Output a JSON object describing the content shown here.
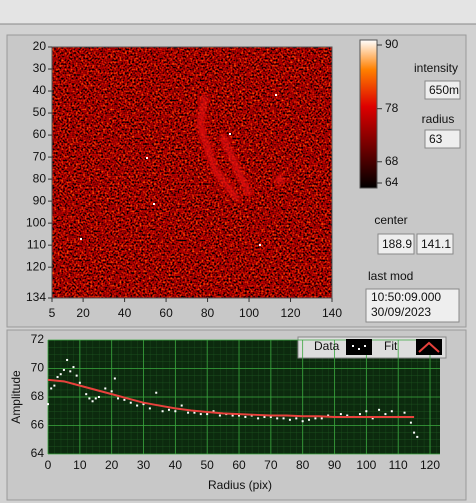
{
  "image_graph": {
    "xlim": [
      5,
      140
    ],
    "xticks": [
      5,
      20,
      40,
      60,
      80,
      100,
      120,
      140
    ],
    "ylim": [
      20,
      134
    ],
    "yticks": [
      20,
      30,
      40,
      50,
      60,
      70,
      80,
      90,
      100,
      110,
      120,
      134
    ]
  },
  "colorbar": {
    "lim": [
      64,
      90
    ],
    "ticks": [
      90,
      78,
      68,
      64
    ]
  },
  "indicators": {
    "intensity": {
      "label": "intensity",
      "value": "650m"
    },
    "radius": {
      "label": "radius",
      "value": "63"
    },
    "center": {
      "label": "center",
      "values": [
        "188.9",
        "141.1"
      ]
    },
    "last_mod": {
      "label": "last mod",
      "lines": [
        "10:50:09.000",
        "30/09/2023"
      ]
    }
  },
  "fit_plot": {
    "type": "scatter",
    "x_label": "Radius (pix)",
    "y_label": "Amplitude",
    "xlim": [
      0,
      120
    ],
    "xticks": [
      0,
      10,
      20,
      30,
      40,
      50,
      60,
      70,
      80,
      90,
      100,
      110,
      120
    ],
    "ylim": [
      64,
      72
    ],
    "yticks": [
      64,
      66,
      68,
      70,
      72
    ],
    "grid": true,
    "series": [
      {
        "name": "Data",
        "color": "#ffffff",
        "mode": "markers",
        "x": [
          0,
          1,
          2,
          3,
          4,
          5,
          6,
          7,
          8,
          9,
          10,
          12,
          13,
          14,
          15,
          16,
          18,
          20,
          21,
          22,
          24,
          26,
          28,
          30,
          32,
          34,
          36,
          38,
          40,
          42,
          44,
          46,
          48,
          50,
          52,
          54,
          56,
          58,
          60,
          62,
          64,
          66,
          68,
          70,
          72,
          74,
          76,
          78,
          80,
          82,
          84,
          86,
          88,
          90,
          92,
          94,
          96,
          98,
          100,
          102,
          104,
          106,
          108,
          110,
          112,
          114,
          115,
          116
        ],
        "values": [
          67.5,
          68.6,
          68.8,
          69.4,
          69.6,
          69.9,
          70.6,
          69.8,
          70.1,
          69.5,
          69.0,
          68.2,
          67.9,
          67.7,
          67.9,
          68.0,
          68.6,
          68.4,
          69.3,
          67.9,
          67.8,
          67.6,
          67.4,
          67.5,
          67.2,
          68.3,
          67.0,
          67.1,
          67.0,
          67.4,
          66.9,
          66.9,
          66.8,
          66.8,
          67.0,
          66.7,
          66.8,
          66.7,
          66.7,
          66.6,
          66.7,
          66.5,
          66.6,
          66.6,
          66.5,
          66.5,
          66.4,
          66.5,
          66.3,
          66.4,
          66.5,
          66.5,
          66.7,
          66.6,
          66.8,
          66.7,
          66.6,
          66.8,
          67.0,
          66.5,
          67.1,
          66.8,
          67.0,
          66.6,
          66.9,
          66.2,
          65.5,
          65.2
        ]
      },
      {
        "name": "Fit",
        "color": "#e8413c",
        "mode": "line",
        "x": [
          0,
          5,
          10,
          15,
          20,
          25,
          30,
          35,
          40,
          45,
          50,
          55,
          60,
          65,
          70,
          75,
          80,
          85,
          90,
          95,
          100,
          105,
          110,
          115
        ],
        "values": [
          69.2,
          69.1,
          68.8,
          68.5,
          68.2,
          67.9,
          67.6,
          67.4,
          67.2,
          67.05,
          66.95,
          66.85,
          66.8,
          66.75,
          66.7,
          66.7,
          66.65,
          66.65,
          66.6,
          66.6,
          66.6,
          66.6,
          66.6,
          66.6
        ]
      }
    ]
  }
}
